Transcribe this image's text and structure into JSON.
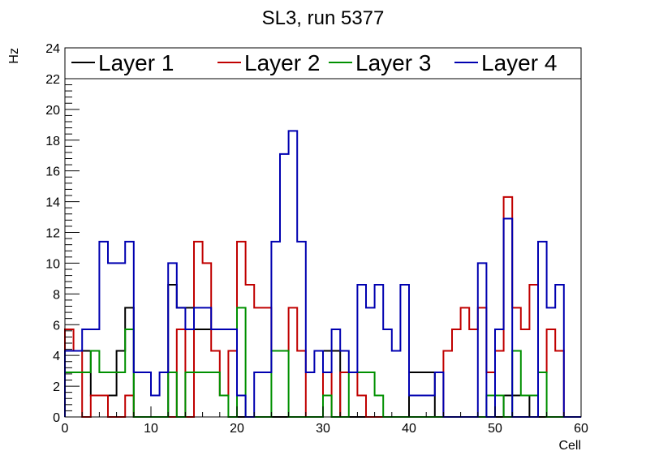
{
  "chart_data": {
    "type": "line",
    "style": "step-histogram",
    "title": "SL3, run 5377",
    "xlabel": "Cell",
    "ylabel": "Hz",
    "xlim": [
      0,
      60
    ],
    "ylim": [
      0,
      24
    ],
    "x_ticks": [
      0,
      10,
      20,
      30,
      40,
      50,
      60
    ],
    "y_ticks": [
      0,
      2,
      4,
      6,
      8,
      10,
      12,
      14,
      16,
      18,
      20,
      22,
      24
    ],
    "legend_position": "top",
    "series": [
      {
        "name": "Layer 1",
        "color": "#000000",
        "values": [
          4.3,
          4.3,
          4.3,
          1.4,
          1.4,
          1.4,
          4.3,
          7.1,
          0,
          0,
          0,
          0,
          8.6,
          7.1,
          7.1,
          5.7,
          5.7,
          5.7,
          5.7,
          5.7,
          0,
          0,
          0,
          0,
          0,
          0,
          0,
          0,
          0,
          0,
          4.3,
          4.3,
          0,
          0,
          0,
          0,
          0,
          0,
          0,
          0,
          2.9,
          2.9,
          2.9,
          0,
          0,
          0,
          0,
          0,
          0,
          0,
          0,
          1.4,
          1.4,
          1.4,
          0,
          0,
          0,
          0,
          0,
          0
        ]
      },
      {
        "name": "Layer 2",
        "color": "#c00000",
        "values": [
          5.7,
          4.3,
          0,
          1.4,
          1.4,
          0,
          0,
          1.4,
          0,
          0,
          0,
          0,
          0,
          5.7,
          0,
          11.4,
          10,
          4.3,
          1.4,
          4.3,
          11.4,
          8.6,
          7.1,
          7.1,
          4.3,
          4.3,
          7.1,
          4.3,
          0,
          0,
          2.9,
          0,
          2.9,
          2.9,
          1.4,
          0,
          0,
          0,
          0,
          0,
          0,
          0,
          0,
          0,
          4.3,
          5.7,
          7.1,
          5.7,
          7.1,
          2.9,
          4.3,
          14.3,
          7.1,
          5.7,
          8.6,
          2.9,
          5.7,
          4.3,
          0,
          0
        ]
      },
      {
        "name": "Layer 3",
        "color": "#009000",
        "values": [
          2.9,
          2.9,
          2.9,
          4.3,
          2.9,
          2.9,
          2.9,
          5.7,
          0,
          0,
          0,
          0,
          2.9,
          0,
          2.9,
          2.9,
          2.9,
          2.9,
          1.4,
          0,
          7.1,
          0,
          0,
          0,
          4.3,
          4.3,
          0,
          0,
          0,
          0,
          1.4,
          0,
          0,
          2.9,
          2.9,
          2.9,
          1.4,
          0,
          0,
          0,
          0,
          0,
          0,
          0,
          0,
          0,
          0,
          0,
          0,
          1.4,
          1.4,
          0,
          4.3,
          1.4,
          1.4,
          2.9,
          0,
          0,
          0,
          0
        ]
      },
      {
        "name": "Layer 4",
        "color": "#0000b0",
        "values": [
          4.3,
          4.3,
          5.7,
          5.7,
          11.4,
          10,
          10,
          11.4,
          2.9,
          2.9,
          1.4,
          2.9,
          10,
          7.1,
          5.7,
          7.1,
          7.1,
          5.7,
          5.7,
          5.7,
          1.4,
          0,
          2.9,
          2.9,
          11.4,
          17.1,
          18.6,
          11.4,
          2.9,
          4.3,
          2.9,
          5.7,
          4.3,
          2.9,
          8.6,
          7.1,
          8.6,
          5.7,
          4.3,
          8.6,
          1.4,
          1.4,
          1.4,
          2.9,
          0,
          0,
          0,
          0,
          10,
          0,
          5.7,
          12.9,
          0,
          0,
          0,
          11.4,
          7.1,
          8.6,
          0,
          0
        ]
      }
    ]
  }
}
